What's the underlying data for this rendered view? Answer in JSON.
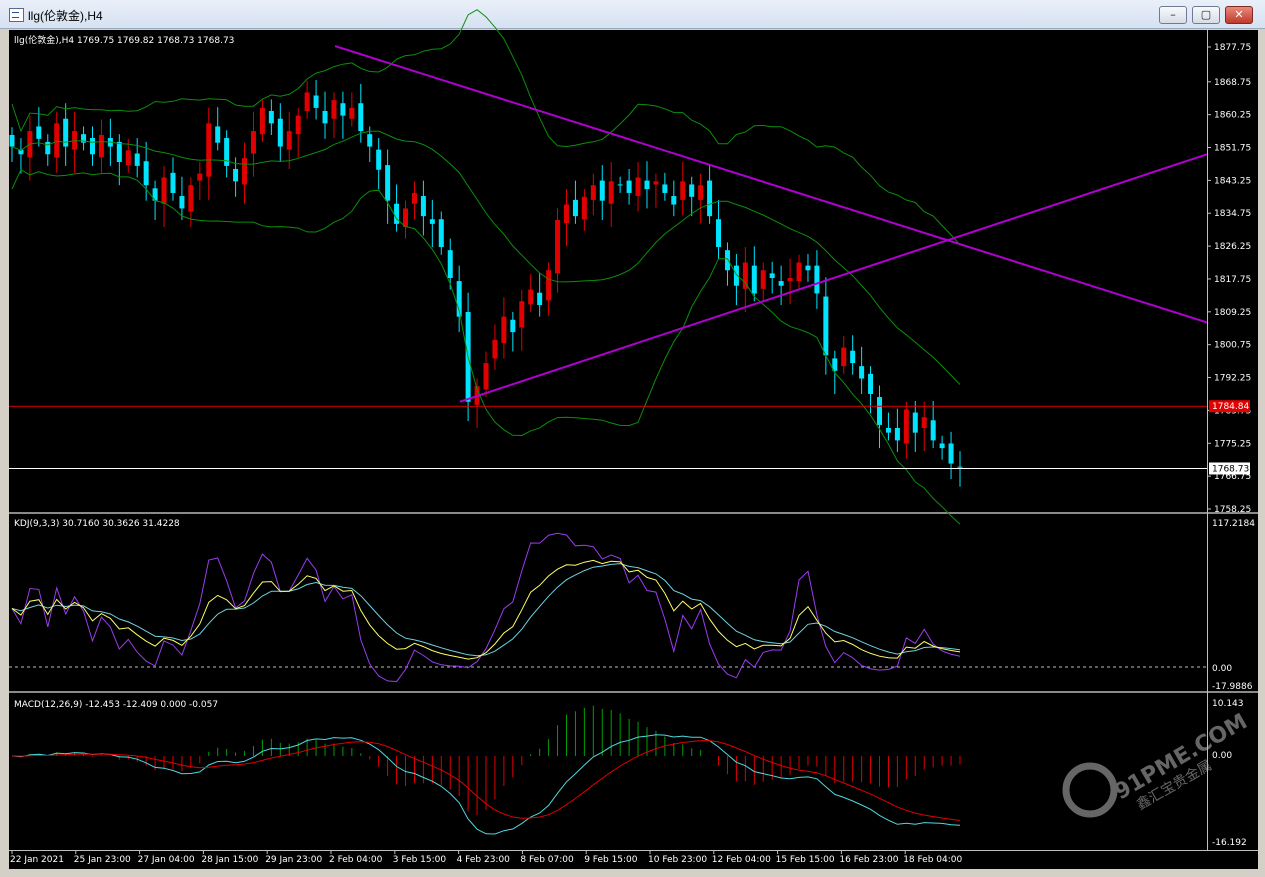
{
  "window": {
    "title": "llg(伦敦金),H4",
    "min_icon": "minimize-icon",
    "max_icon": "maximize-icon",
    "close_icon": "close-icon"
  },
  "main_chart": {
    "header": "llg(伦敦金),H4  1769.75 1769.82 1768.73 1768.73",
    "price_axis_labels": [
      "1877.75",
      "1868.75",
      "1860.25",
      "1851.75",
      "1843.25",
      "1834.75",
      "1826.25",
      "1817.75",
      "1809.25",
      "1800.75",
      "1792.25",
      "1783.75",
      "1775.25",
      "1766.75",
      "1758.25"
    ],
    "current_price_tag": "1768.73",
    "red_line_tag": "1784.84",
    "chart_data": {
      "type": "candlestick",
      "symbol": "llg(伦敦金)",
      "timeframe": "H4",
      "ohlc_shown": {
        "open": 1769.75,
        "high": 1769.82,
        "low": 1768.73,
        "close": 1768.73
      },
      "ylim": [
        1758.25,
        1877.75
      ],
      "closes": [
        1852,
        1850,
        1856,
        1854,
        1850,
        1858,
        1852,
        1856,
        1853,
        1850,
        1855,
        1852,
        1848,
        1851,
        1847,
        1842,
        1838,
        1844,
        1840,
        1836,
        1842,
        1845,
        1858,
        1853,
        1847,
        1843,
        1849,
        1856,
        1862,
        1858,
        1852,
        1856,
        1860,
        1866,
        1862,
        1858,
        1864,
        1860,
        1862,
        1856,
        1852,
        1846,
        1838,
        1832,
        1836,
        1840,
        1834,
        1832,
        1826,
        1818,
        1808,
        1786,
        1790,
        1796,
        1802,
        1808,
        1804,
        1812,
        1815,
        1811,
        1820,
        1833,
        1837,
        1834,
        1839,
        1842,
        1838,
        1843,
        1842,
        1840,
        1844,
        1841,
        1843,
        1840,
        1837,
        1843,
        1839,
        1842,
        1834,
        1826,
        1820,
        1816,
        1822,
        1814,
        1820,
        1818,
        1816,
        1818,
        1822,
        1820,
        1814,
        1798,
        1794,
        1800,
        1796,
        1792,
        1788,
        1780,
        1778,
        1776,
        1784,
        1778,
        1782,
        1776,
        1774,
        1770,
        1769
      ],
      "red_horizontal_level": 1784.84,
      "white_horizontal_level": 1768.73,
      "x_labels": [
        "22 Jan 2021",
        "25 Jan 23:00",
        "27 Jan 04:00",
        "28 Jan 15:00",
        "29 Jan 23:00",
        "2 Feb 04:00",
        "3 Feb 15:00",
        "4 Feb 23:00",
        "8 Feb 07:00",
        "9 Feb 15:00",
        "10 Feb 23:00",
        "12 Feb 04:00",
        "15 Feb 15:00",
        "16 Feb 23:00",
        "18 Feb 04:00"
      ]
    }
  },
  "kdj": {
    "header": "KDJ(9,3,3) 30.7160 30.3626 31.4228",
    "axis_top": "117.2184",
    "axis_zero": "0.00",
    "axis_bottom": "-17.9886"
  },
  "macd": {
    "header": "MACD(12,26,9) -12.453 -12.409 0.000 -0.057",
    "axis_top": "10.143",
    "axis_zero": "0.00",
    "axis_bottom": "-16.192"
  },
  "watermark": {
    "logo": "91PME.COM",
    "tagline": "鑫汇宝贵金属"
  },
  "colors": {
    "up_candle": "#e00000",
    "down_candle": "#00e5ff",
    "trendline": "#b000d0",
    "bands": "#0b8f0b",
    "red_level": "#e00000",
    "kdj_k": "#ffff66",
    "kdj_d": "#6fd3e0",
    "kdj_j": "#9a3cf0",
    "macd_signal": "#e00000",
    "macd_line": "#50d8e0",
    "hist_pos": "#00a000",
    "hist_neg": "#e00000"
  }
}
